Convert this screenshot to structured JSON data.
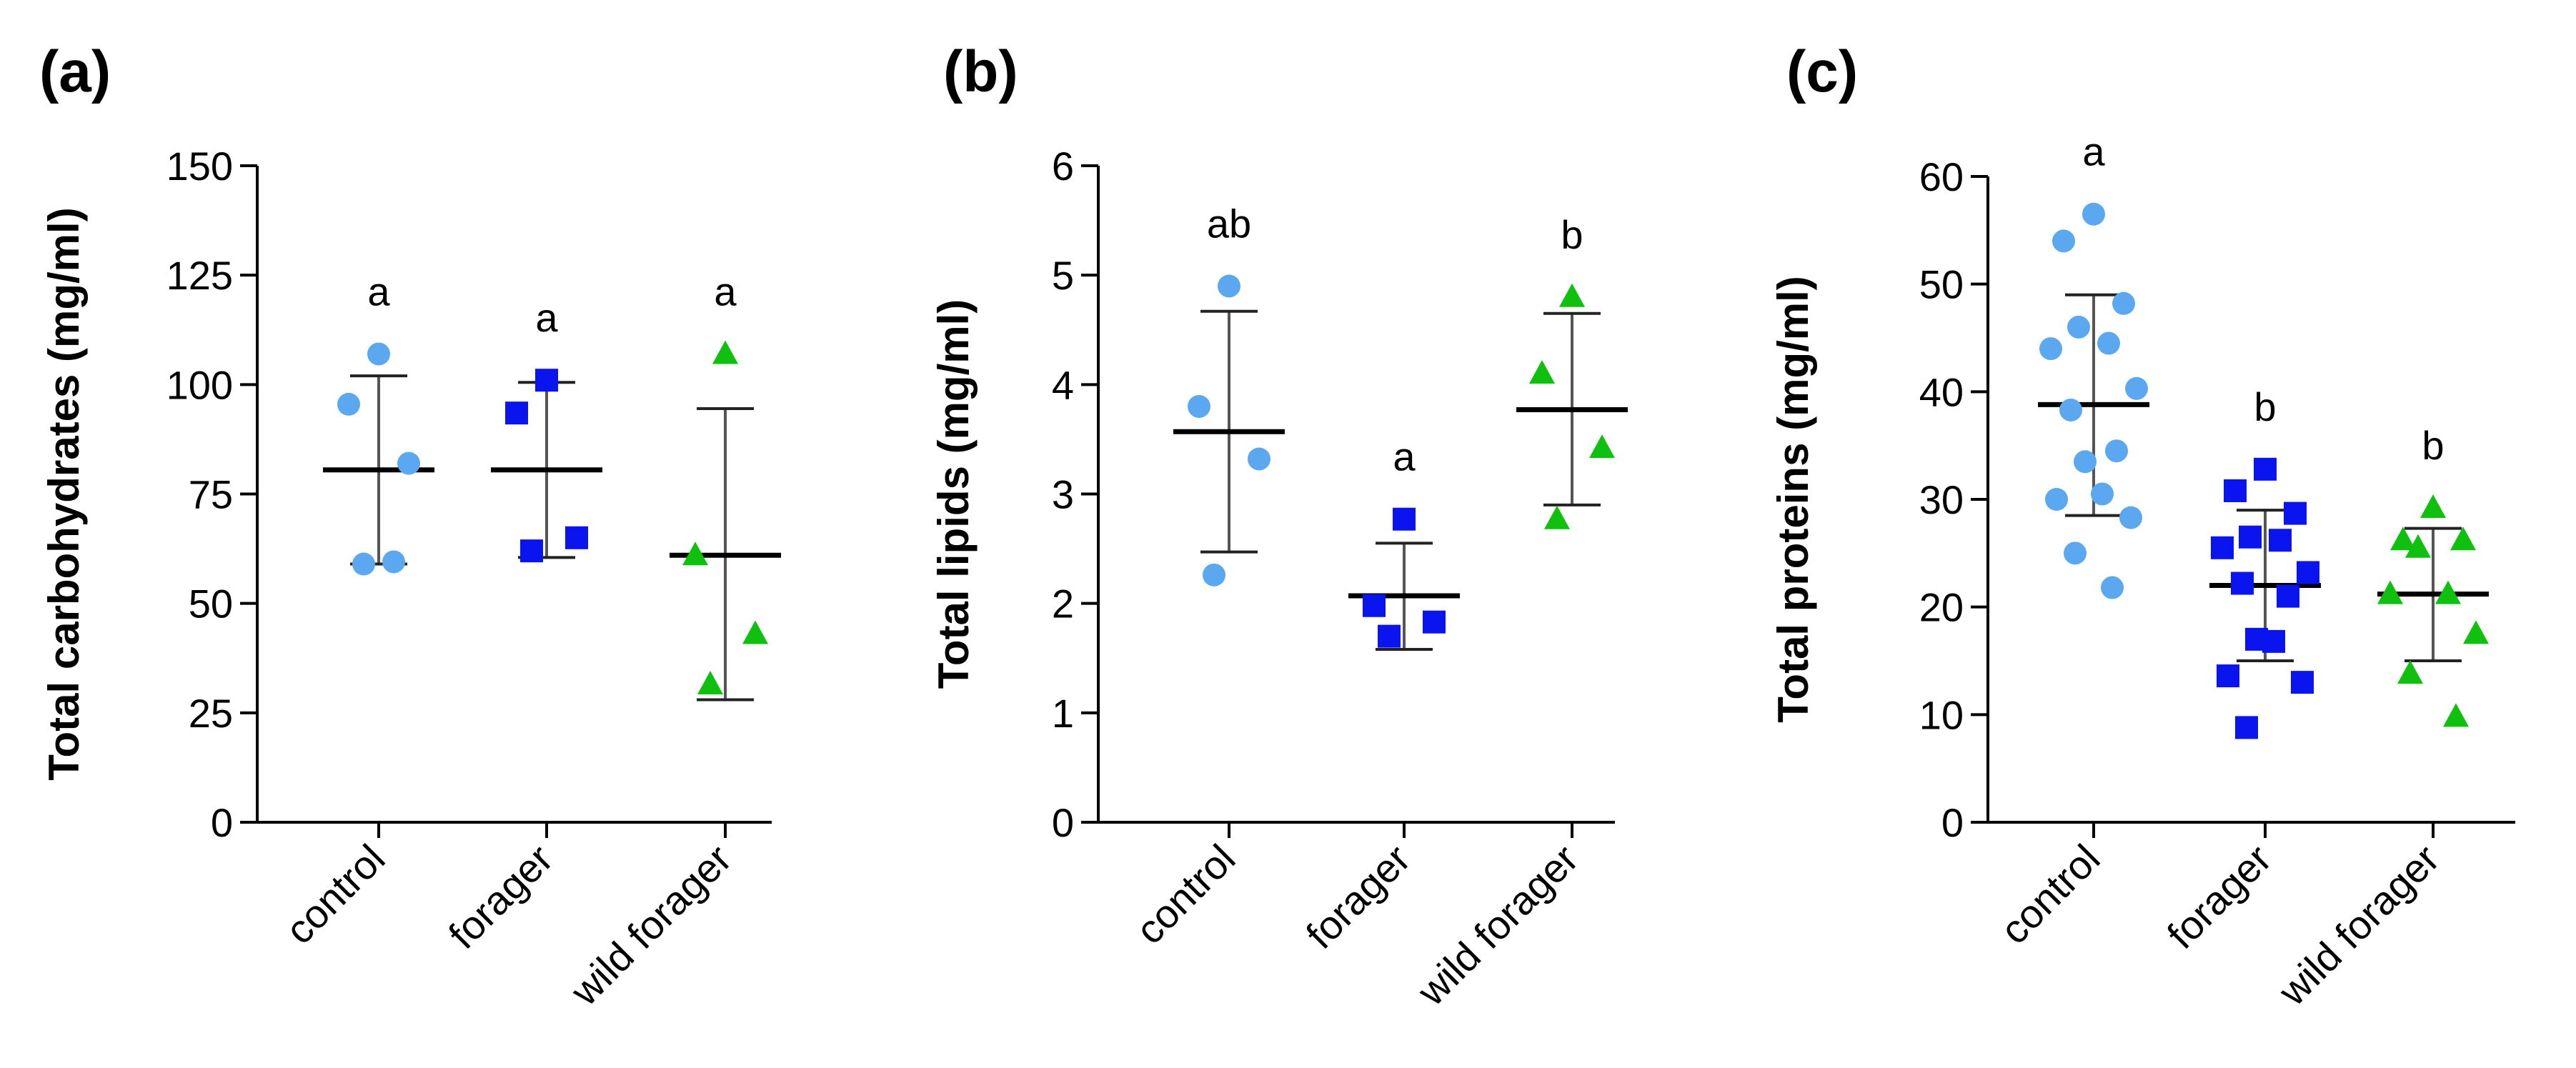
{
  "chart_data": [
    {
      "type": "scatter",
      "panel_label": "(a)",
      "ylabel": "Total carbohydrates (mg/ml)",
      "ylim": [
        0,
        150
      ],
      "yticks": [
        0,
        25,
        50,
        75,
        100,
        125,
        150
      ],
      "categories": [
        "control",
        "forager",
        "wild forager"
      ],
      "groups": [
        {
          "category": "control",
          "marker": "circle",
          "color": "#5ba8f0",
          "points": [
            107,
            95.5,
            82,
            59,
            59.5
          ],
          "mean": 80.5,
          "sd_low": 59,
          "sd_high": 102,
          "letter": "a"
        },
        {
          "category": "forager",
          "marker": "square",
          "color": "#0a14ee",
          "points": [
            101,
            93.5,
            65,
            62
          ],
          "mean": 80.5,
          "sd_low": 60.5,
          "sd_high": 100.5,
          "letter": "a"
        },
        {
          "category": "wild forager",
          "marker": "triangle",
          "color": "#0fc00f",
          "points": [
            107,
            61,
            43,
            31.5
          ],
          "mean": 61,
          "sd_low": 28,
          "sd_high": 94.5,
          "letter": "a"
        }
      ]
    },
    {
      "type": "scatter",
      "panel_label": "(b)",
      "ylabel": "Total lipids (mg/ml)",
      "ylim": [
        0,
        6
      ],
      "yticks": [
        0,
        1,
        2,
        3,
        4,
        5,
        6
      ],
      "categories": [
        "control",
        "forager",
        "wild forager"
      ],
      "groups": [
        {
          "category": "control",
          "marker": "circle",
          "color": "#5ba8f0",
          "points": [
            4.9,
            3.8,
            3.32,
            2.26
          ],
          "mean": 3.57,
          "sd_low": 2.47,
          "sd_high": 4.67,
          "letter": "ab"
        },
        {
          "category": "forager",
          "marker": "square",
          "color": "#0a14ee",
          "points": [
            2.77,
            1.98,
            1.83,
            1.7
          ],
          "mean": 2.07,
          "sd_low": 1.58,
          "sd_high": 2.55,
          "letter": "a"
        },
        {
          "category": "wild forager",
          "marker": "triangle",
          "color": "#0fc00f",
          "points": [
            4.8,
            4.1,
            3.42,
            2.77
          ],
          "mean": 3.77,
          "sd_low": 2.9,
          "sd_high": 4.65,
          "letter": "b"
        }
      ]
    },
    {
      "type": "scatter",
      "panel_label": "(c)",
      "ylabel": "Total proteins (mg/ml)",
      "ylim": [
        0,
        60
      ],
      "yticks": [
        0,
        10,
        20,
        30,
        40,
        50,
        60
      ],
      "categories": [
        "control",
        "forager",
        "wild forager"
      ],
      "groups": [
        {
          "category": "control",
          "marker": "circle",
          "color": "#5ba8f0",
          "points": [
            56.5,
            54,
            48.2,
            46,
            44.5,
            44,
            40.3,
            38.3,
            34.5,
            33.5,
            30.5,
            30,
            28.3,
            25,
            21.8
          ],
          "mean": 38.8,
          "sd_low": 28.5,
          "sd_high": 49,
          "letter": "a"
        },
        {
          "category": "forager",
          "marker": "square",
          "color": "#0a14ee",
          "points": [
            32.8,
            30.8,
            28.7,
            26.5,
            26.2,
            25.5,
            23.2,
            22.2,
            21,
            17,
            16.8,
            13.6,
            13,
            8.8
          ],
          "mean": 22,
          "sd_low": 15,
          "sd_high": 29,
          "letter": "b"
        },
        {
          "category": "wild forager",
          "marker": "triangle",
          "color": "#0fc00f",
          "points": [
            29.2,
            26.2,
            26.2,
            25.5,
            21.2,
            21.2,
            17.5,
            13.8,
            9.8
          ],
          "mean": 21.2,
          "sd_low": 15,
          "sd_high": 27.3,
          "letter": "b"
        }
      ]
    }
  ]
}
